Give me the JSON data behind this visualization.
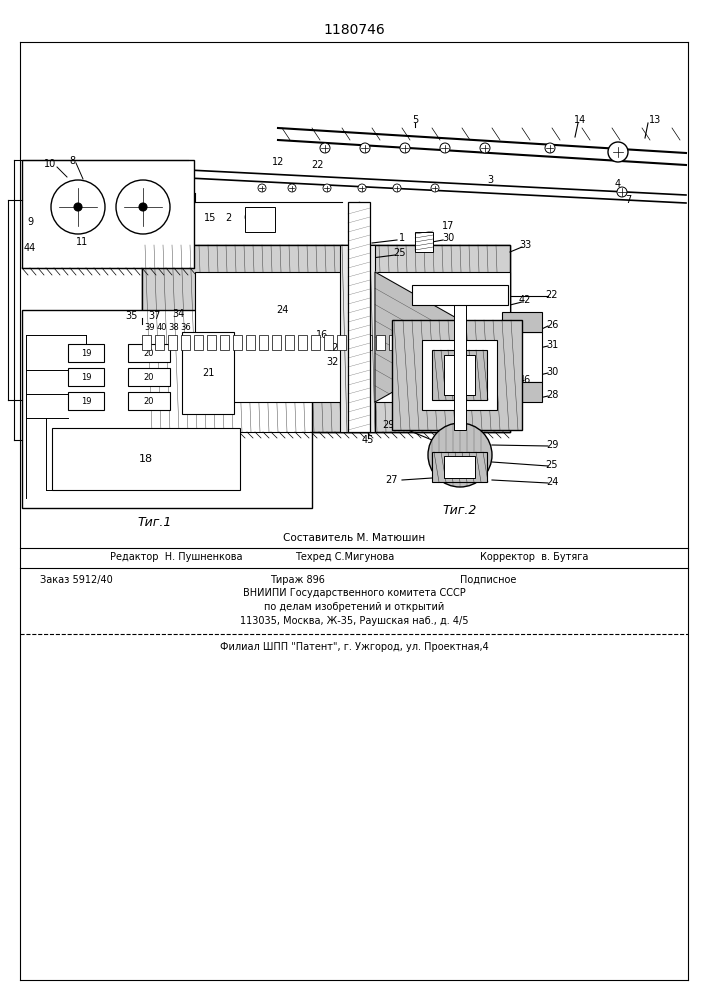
{
  "title": "1180746",
  "fig1_label": "Τиг.1",
  "fig2_label": "Τиг.2",
  "footer_line1_left": "Редактор  Н. Пушненкова",
  "footer_line1_mid": "Техред С.Мигунова",
  "footer_line1_right": "Корректор  в. Бутяга",
  "footer_line2_left": "Заказ 5912/40",
  "footer_line2_mid1": "Тираж 896",
  "footer_line2_mid2": "Подписное",
  "footer_line3": "ВНИИПИ Государственного комитета СССР",
  "footer_line4": "по делам изобретений и открытий",
  "footer_line5": "113035, Москва, Ж-35, Раушская наб., д. 4/5",
  "footer_line6": "Филиал ШПП \"Патент\", г. Ужгород, ул. Проектная,4",
  "sestavitel": "Составитель М. Матюшин",
  "bg_color": "#ffffff",
  "line_color": "#000000"
}
